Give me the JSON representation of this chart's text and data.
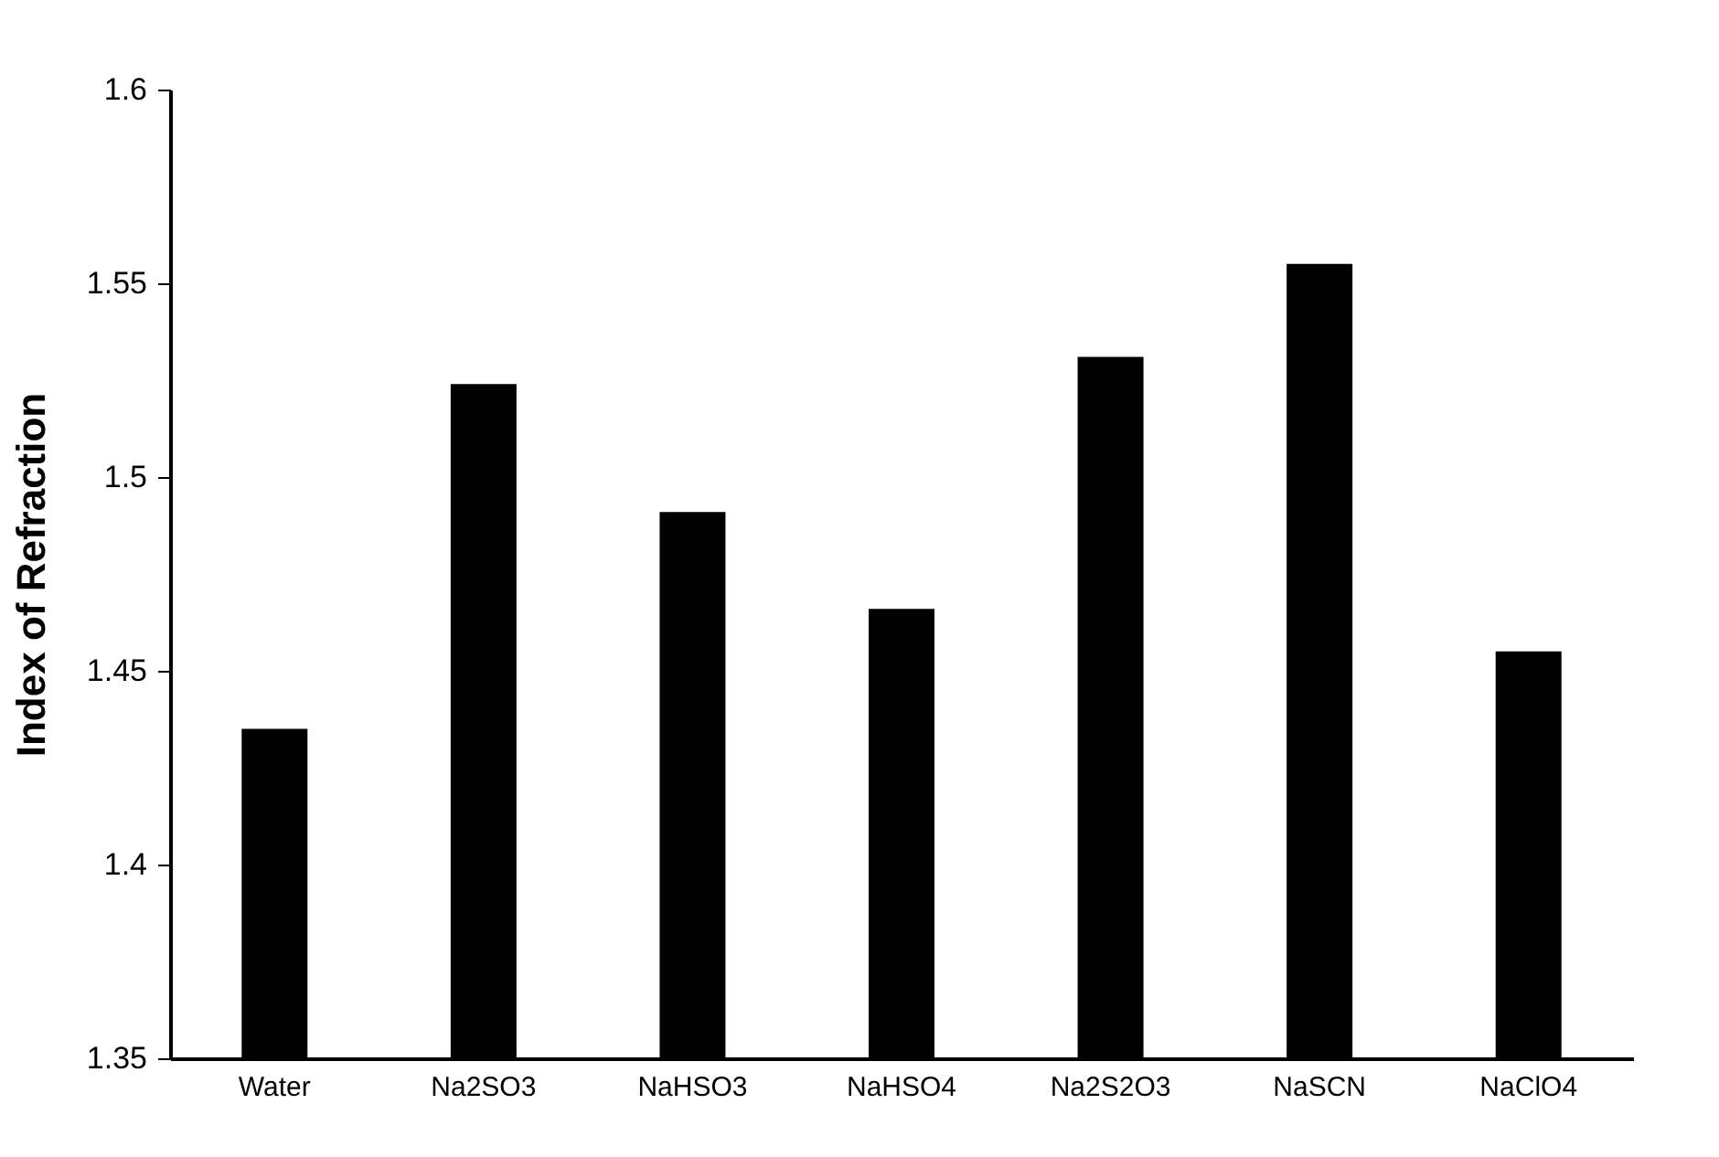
{
  "chart_data": {
    "type": "bar",
    "ylabel": "Index of Refraction",
    "categories": [
      "Water",
      "Na2SO3",
      "NaHSO3",
      "NaHSO4",
      "Na2S2O3",
      "NaSCN",
      "NaClO4"
    ],
    "values": [
      1.435,
      1.524,
      1.491,
      1.466,
      1.531,
      1.555,
      1.455
    ],
    "color": "#000000",
    "ylim": [
      1.35,
      1.6
    ],
    "yticks": [
      1.35,
      1.4,
      1.45,
      1.5,
      1.55,
      1.6
    ],
    "grid": false
  }
}
